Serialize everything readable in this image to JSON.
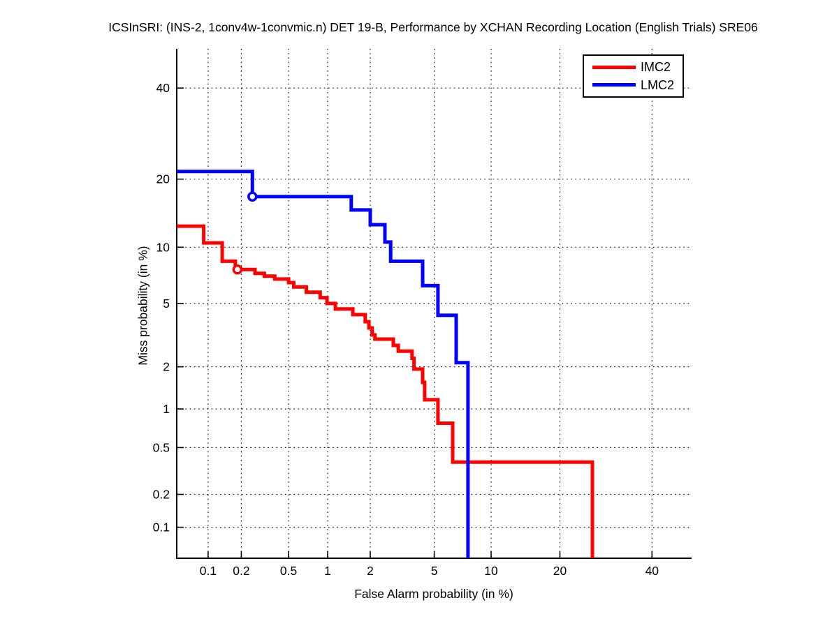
{
  "title": "ICSInSRI: (INS-2, 1conv4w-1convmic.n) DET 19-B,  Performance by XCHAN Recording Location (English Trials) SRE06",
  "chart_data": {
    "type": "line",
    "subtype": "DET staircase curves (probit-probit axes)",
    "title": "ICSInSRI: (INS-2, 1conv4w-1convmic.n) DET 19-B,  Performance by XCHAN Recording Location (English Trials) SRE06",
    "xlabel": "False Alarm probability (in %)",
    "ylabel": "Miss probability (in %)",
    "x_scale": "probit",
    "y_scale": "probit",
    "xlim": [
      0.05,
      50
    ],
    "ylim": [
      0.05,
      50
    ],
    "grid": "dotted",
    "legend_position": "top-right",
    "x_ticks": [
      0.1,
      0.2,
      0.5,
      1,
      2,
      5,
      10,
      20,
      40
    ],
    "x_tick_labels": [
      "0.1",
      "0.2",
      "0.5",
      "1",
      "2",
      "5",
      "10",
      "20",
      "40"
    ],
    "y_ticks": [
      0.1,
      0.2,
      0.5,
      1,
      2,
      5,
      10,
      20,
      40
    ],
    "y_tick_labels": [
      "0.1",
      "0.2",
      "0.5",
      "1",
      "2",
      "5",
      "10",
      "20",
      "40"
    ],
    "series": [
      {
        "name": "IMC2",
        "color": "#ff0000",
        "marker_point": [
          0.185,
          7.7
        ],
        "points": [
          [
            0.05,
            12.6
          ],
          [
            0.091,
            12.6
          ],
          [
            0.091,
            10.5
          ],
          [
            0.135,
            10.5
          ],
          [
            0.135,
            8.5
          ],
          [
            0.177,
            8.5
          ],
          [
            0.177,
            7.7
          ],
          [
            0.263,
            7.7
          ],
          [
            0.263,
            7.35
          ],
          [
            0.316,
            7.35
          ],
          [
            0.316,
            7.1
          ],
          [
            0.386,
            7.1
          ],
          [
            0.386,
            6.85
          ],
          [
            0.5,
            6.85
          ],
          [
            0.5,
            6.55
          ],
          [
            0.55,
            6.55
          ],
          [
            0.55,
            6.2
          ],
          [
            0.69,
            6.2
          ],
          [
            0.69,
            5.8
          ],
          [
            0.88,
            5.8
          ],
          [
            0.88,
            5.4
          ],
          [
            0.99,
            5.4
          ],
          [
            0.99,
            5.0
          ],
          [
            1.14,
            5.0
          ],
          [
            1.14,
            4.65
          ],
          [
            1.52,
            4.65
          ],
          [
            1.52,
            4.3
          ],
          [
            1.85,
            4.3
          ],
          [
            1.85,
            3.9
          ],
          [
            1.96,
            3.9
          ],
          [
            1.96,
            3.57
          ],
          [
            2.06,
            3.57
          ],
          [
            2.06,
            3.23
          ],
          [
            2.15,
            3.23
          ],
          [
            2.15,
            3.04
          ],
          [
            2.83,
            3.04
          ],
          [
            2.83,
            2.77
          ],
          [
            3.04,
            2.77
          ],
          [
            3.04,
            2.54
          ],
          [
            3.7,
            2.54
          ],
          [
            3.7,
            2.28
          ],
          [
            3.8,
            2.28
          ],
          [
            3.8,
            1.93
          ],
          [
            4.28,
            1.93
          ],
          [
            4.28,
            1.56
          ],
          [
            4.4,
            1.56
          ],
          [
            4.4,
            1.17
          ],
          [
            5.25,
            1.17
          ],
          [
            5.25,
            0.78
          ],
          [
            6.34,
            0.78
          ],
          [
            6.34,
            0.38
          ],
          [
            26.3,
            0.38
          ],
          [
            26.3,
            0.05
          ]
        ]
      },
      {
        "name": "LMC2",
        "color": "#0000ff",
        "marker_point": [
          0.25,
          17.0
        ],
        "points": [
          [
            0.05,
            21.4
          ],
          [
            0.25,
            21.4
          ],
          [
            0.25,
            17.0
          ],
          [
            1.48,
            17.0
          ],
          [
            1.48,
            14.9
          ],
          [
            2.0,
            14.9
          ],
          [
            2.0,
            12.8
          ],
          [
            2.5,
            12.8
          ],
          [
            2.5,
            10.6
          ],
          [
            2.72,
            10.6
          ],
          [
            2.72,
            8.5
          ],
          [
            4.28,
            8.5
          ],
          [
            4.28,
            6.3
          ],
          [
            5.25,
            6.3
          ],
          [
            5.25,
            4.26
          ],
          [
            6.62,
            4.26
          ],
          [
            6.62,
            2.13
          ],
          [
            7.65,
            2.13
          ],
          [
            7.65,
            0.05
          ]
        ]
      }
    ]
  }
}
